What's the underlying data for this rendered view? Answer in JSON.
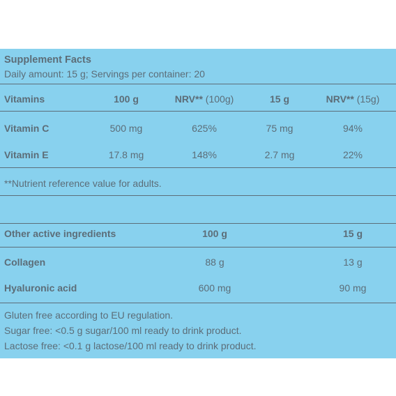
{
  "header": {
    "title": "Supplement Facts",
    "subtitle": "Daily amount: 15 g; Servings per container: 20"
  },
  "vitamins_table": {
    "headers": {
      "name": "Vitamins",
      "per100g": "100 g",
      "nrv100_bold": "NRV**",
      "nrv100_rest": " (100g)",
      "per15g": "15 g",
      "nrv15_bold": "NRV**",
      "nrv15_rest": " (15g)"
    },
    "rows": [
      {
        "name": "Vitamin C",
        "per100g": "500 mg",
        "nrv100": "625%",
        "per15g": "75 mg",
        "nrv15": "94%"
      },
      {
        "name": "Vitamin E",
        "per100g": "17.8 mg",
        "nrv100": "148%",
        "per15g": "2.7 mg",
        "nrv15": "22%"
      }
    ],
    "footnote": "**Nutrient reference value for adults."
  },
  "other_table": {
    "headers": {
      "name": "Other active ingredients",
      "per100g": "100 g",
      "per15g": "15 g"
    },
    "rows": [
      {
        "name": "Collagen",
        "per100g": "88 g",
        "per15g": "13 g"
      },
      {
        "name": "Hyaluronic acid",
        "per100g": "600 mg",
        "per15g": "90 mg"
      }
    ]
  },
  "notes": [
    "Gluten free according to EU regulation.",
    "Sugar free: <0.5 g sugar/100 ml ready to drink product.",
    "Lactose free: <0.1 g lactose/100 ml ready to drink product."
  ],
  "colors": {
    "background": "#88d1ee",
    "text": "#5c6d78",
    "rule": "#5d6e79"
  }
}
